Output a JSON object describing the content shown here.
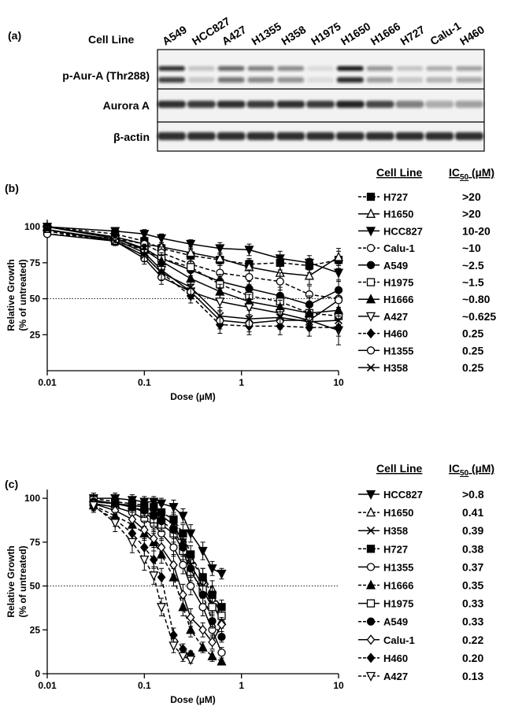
{
  "panel_a": {
    "label": "(a)",
    "column_header": "Cell Line",
    "cell_lines": [
      "A549",
      "HCC827",
      "A427",
      "H1355",
      "H358",
      "H1975",
      "H1650",
      "H1666",
      "H727",
      "Calu-1",
      "H460"
    ],
    "rows": [
      "p-Aur-A (Thr288)",
      "Aurora A",
      "β-actin"
    ]
  },
  "chart_data": [
    {
      "type": "line",
      "panel": "(b)",
      "ylabel": [
        "Relative Growth",
        "(% of untreated)"
      ],
      "xlabel": "Dose (µM)",
      "xscale": "log",
      "xlim": [
        0.01,
        10
      ],
      "xticks": [
        0.01,
        0.1,
        1,
        10
      ],
      "ylim": [
        0,
        105
      ],
      "yticks": [
        25,
        50,
        75,
        100
      ],
      "hline": 50,
      "legend_title": "Cell Line",
      "ic50_title": {
        "text": "IC",
        "sub": "50",
        "unit": "(µM)"
      },
      "x": [
        0.01,
        0.05,
        0.1,
        0.15,
        0.3,
        0.6,
        1.2,
        2.5,
        5,
        10
      ],
      "series": [
        {
          "name": "H727",
          "ic50": ">20",
          "color": "#000000",
          "marker": "square",
          "filled": true,
          "dashed": true,
          "values": [
            100,
            95,
            90,
            85,
            80,
            77,
            74,
            75,
            73,
            77
          ],
          "errors": [
            2,
            3,
            3,
            3,
            4,
            4,
            4,
            5,
            5,
            6
          ]
        },
        {
          "name": "H1650",
          "ic50": ">20",
          "color": "#000000",
          "marker": "triangle",
          "filled": false,
          "dashed": false,
          "values": [
            100,
            93,
            88,
            86,
            82,
            78,
            72,
            68,
            66,
            79
          ],
          "errors": [
            2,
            3,
            3,
            3,
            4,
            4,
            5,
            5,
            6,
            6
          ]
        },
        {
          "name": "HCC827",
          "ic50": "10-20",
          "color": "#000000",
          "marker": "tri-down",
          "filled": true,
          "dashed": false,
          "values": [
            100,
            97,
            95,
            92,
            88,
            85,
            84,
            78,
            75,
            68
          ],
          "errors": [
            2,
            2,
            3,
            3,
            3,
            4,
            4,
            5,
            5,
            6
          ]
        },
        {
          "name": "Calu-1",
          "ic50": "~10",
          "color": "#000000",
          "marker": "circle",
          "filled": false,
          "dashed": true,
          "values": [
            95,
            92,
            88,
            82,
            74,
            68,
            65,
            62,
            53,
            50
          ],
          "errors": [
            2,
            3,
            3,
            4,
            4,
            5,
            5,
            6,
            6,
            7
          ]
        },
        {
          "name": "A549",
          "ic50": "~2.5",
          "color": "#000000",
          "marker": "circle",
          "filled": true,
          "dashed": false,
          "values": [
            100,
            92,
            85,
            78,
            70,
            62,
            57,
            52,
            46,
            56
          ],
          "errors": [
            2,
            3,
            3,
            4,
            4,
            5,
            5,
            6,
            6,
            7
          ]
        },
        {
          "name": "H1975",
          "ic50": "~1.5",
          "color": "#000000",
          "marker": "square",
          "filled": false,
          "dashed": true,
          "values": [
            97,
            90,
            84,
            78,
            72,
            60,
            52,
            48,
            40,
            38
          ],
          "errors": [
            2,
            3,
            3,
            4,
            4,
            5,
            5,
            5,
            6,
            6
          ]
        },
        {
          "name": "H1666",
          "ic50": "~0.80",
          "color": "#000000",
          "marker": "triangle",
          "filled": true,
          "dashed": false,
          "values": [
            100,
            92,
            84,
            76,
            64,
            55,
            48,
            44,
            40,
            42
          ],
          "errors": [
            2,
            3,
            3,
            4,
            5,
            5,
            5,
            5,
            6,
            6
          ]
        },
        {
          "name": "A427",
          "ic50": "~0.625",
          "color": "#000000",
          "marker": "tri-down",
          "filled": false,
          "dashed": false,
          "values": [
            98,
            91,
            82,
            70,
            55,
            48,
            44,
            40,
            35,
            28
          ],
          "errors": [
            2,
            3,
            4,
            5,
            5,
            6,
            6,
            6,
            6,
            10
          ]
        },
        {
          "name": "H460",
          "ic50": "0.25",
          "color": "#000000",
          "marker": "diamond",
          "filled": true,
          "dashed": true,
          "values": [
            97,
            90,
            80,
            68,
            52,
            32,
            31,
            31,
            30,
            30
          ],
          "errors": [
            2,
            3,
            4,
            5,
            5,
            6,
            6,
            6,
            6,
            6
          ]
        },
        {
          "name": "H1355",
          "ic50": "0.25",
          "color": "#000000",
          "marker": "circle",
          "filled": false,
          "dashed": false,
          "values": [
            95,
            90,
            78,
            65,
            55,
            35,
            33,
            35,
            35,
            49
          ],
          "errors": [
            2,
            3,
            4,
            5,
            5,
            6,
            6,
            6,
            6,
            8
          ]
        },
        {
          "name": "H358",
          "ic50": "0.25",
          "color": "#000000",
          "marker": "x",
          "filled": false,
          "dashed": false,
          "values": [
            98,
            90,
            80,
            68,
            58,
            38,
            36,
            37,
            34,
            35
          ],
          "errors": [
            2,
            3,
            4,
            5,
            5,
            6,
            6,
            6,
            6,
            6
          ]
        }
      ]
    },
    {
      "type": "line",
      "panel": "(c)",
      "ylabel": [
        "Relative Growth",
        "(% of untreated)"
      ],
      "xlabel": "Dose (µM)",
      "xscale": "log",
      "xlim": [
        0.01,
        10
      ],
      "xticks": [
        0.01,
        0.1,
        1,
        10
      ],
      "ylim": [
        0,
        105
      ],
      "yticks": [
        0,
        25,
        50,
        75,
        100
      ],
      "hline": 50,
      "legend_title": "Cell Line",
      "ic50_title": {
        "text": "IC",
        "sub": "50",
        "unit": "(µM)"
      },
      "x": [
        0.03,
        0.05,
        0.075,
        0.1,
        0.125,
        0.15,
        0.2,
        0.25,
        0.3,
        0.4,
        0.5,
        0.625
      ],
      "series": [
        {
          "name": "HCC827",
          "ic50": ">0.8",
          "color": "#000000",
          "marker": "tri-down",
          "filled": true,
          "dashed": false,
          "values": [
            100,
            100,
            99,
            98,
            98,
            97,
            95,
            90,
            80,
            70,
            60,
            57
          ],
          "errors": [
            3,
            3,
            3,
            3,
            3,
            3,
            4,
            4,
            5,
            5,
            4,
            3
          ]
        },
        {
          "name": "H1650",
          "ic50": "0.41",
          "color": "#000000",
          "marker": "triangle",
          "filled": false,
          "dashed": true,
          "values": [
            98,
            97,
            96,
            95,
            93,
            90,
            85,
            75,
            65,
            55,
            48,
            30
          ],
          "errors": [
            3,
            3,
            3,
            3,
            3,
            4,
            4,
            5,
            5,
            5,
            5,
            4
          ]
        },
        {
          "name": "H358",
          "ic50": "0.39",
          "color": "#000000",
          "marker": "x",
          "filled": false,
          "dashed": false,
          "values": [
            98,
            97,
            96,
            95,
            93,
            90,
            85,
            75,
            62,
            50,
            40,
            30
          ],
          "errors": [
            3,
            3,
            3,
            3,
            3,
            4,
            4,
            5,
            5,
            5,
            5,
            4
          ]
        },
        {
          "name": "H727",
          "ic50": "0.38",
          "color": "#000000",
          "marker": "square",
          "filled": true,
          "dashed": true,
          "values": [
            100,
            98,
            97,
            96,
            95,
            92,
            88,
            80,
            68,
            55,
            45,
            38
          ],
          "errors": [
            3,
            3,
            3,
            3,
            3,
            4,
            4,
            5,
            5,
            5,
            5,
            4
          ]
        },
        {
          "name": "H1355",
          "ic50": "0.37",
          "color": "#000000",
          "marker": "circle",
          "filled": false,
          "dashed": false,
          "values": [
            97,
            95,
            92,
            88,
            85,
            80,
            72,
            62,
            50,
            38,
            25,
            12
          ],
          "errors": [
            3,
            3,
            3,
            4,
            4,
            4,
            5,
            5,
            5,
            5,
            4,
            3
          ]
        },
        {
          "name": "H1666",
          "ic50": "0.35",
          "color": "#000000",
          "marker": "triangle",
          "filled": true,
          "dashed": true,
          "values": [
            96,
            90,
            85,
            80,
            75,
            68,
            55,
            38,
            25,
            15,
            10,
            7
          ],
          "errors": [
            3,
            4,
            4,
            4,
            5,
            5,
            5,
            5,
            4,
            3,
            3,
            2
          ]
        },
        {
          "name": "H1975",
          "ic50": "0.33",
          "color": "#000000",
          "marker": "square",
          "filled": false,
          "dashed": false,
          "values": [
            99,
            97,
            95,
            92,
            88,
            85,
            80,
            70,
            58,
            48,
            38,
            33
          ],
          "errors": [
            3,
            3,
            3,
            3,
            4,
            4,
            5,
            5,
            5,
            5,
            5,
            4
          ]
        },
        {
          "name": "A549",
          "ic50": "0.33",
          "color": "#000000",
          "marker": "circle",
          "filled": true,
          "dashed": true,
          "values": [
            98,
            97,
            95,
            93,
            90,
            87,
            82,
            72,
            60,
            45,
            30,
            21
          ],
          "errors": [
            3,
            3,
            3,
            3,
            4,
            4,
            5,
            5,
            5,
            5,
            4,
            3
          ]
        },
        {
          "name": "Calu-1",
          "ic50": "0.22",
          "color": "#000000",
          "marker": "diamond",
          "filled": false,
          "dashed": false,
          "values": [
            97,
            93,
            88,
            82,
            77,
            72,
            62,
            45,
            32,
            25,
            18,
            28
          ],
          "errors": [
            3,
            4,
            4,
            5,
            5,
            5,
            6,
            6,
            5,
            4,
            4,
            4
          ]
        },
        {
          "name": "H460",
          "ic50": "0.20",
          "color": "#000000",
          "marker": "diamond",
          "filled": true,
          "dashed": true,
          "values": [
            95,
            88,
            80,
            72,
            65,
            55,
            22,
            14,
            11,
            null,
            null,
            null
          ],
          "errors": [
            3,
            4,
            5,
            5,
            5,
            5,
            4,
            3,
            2,
            null,
            null,
            null
          ]
        },
        {
          "name": "A427",
          "ic50": "0.13",
          "color": "#000000",
          "marker": "tri-down",
          "filled": false,
          "dashed": true,
          "values": [
            96,
            86,
            75,
            65,
            56,
            38,
            16,
            10,
            8,
            null,
            null,
            null
          ],
          "errors": [
            3,
            5,
            6,
            6,
            5,
            5,
            4,
            3,
            2,
            null,
            null,
            null
          ]
        }
      ]
    }
  ]
}
